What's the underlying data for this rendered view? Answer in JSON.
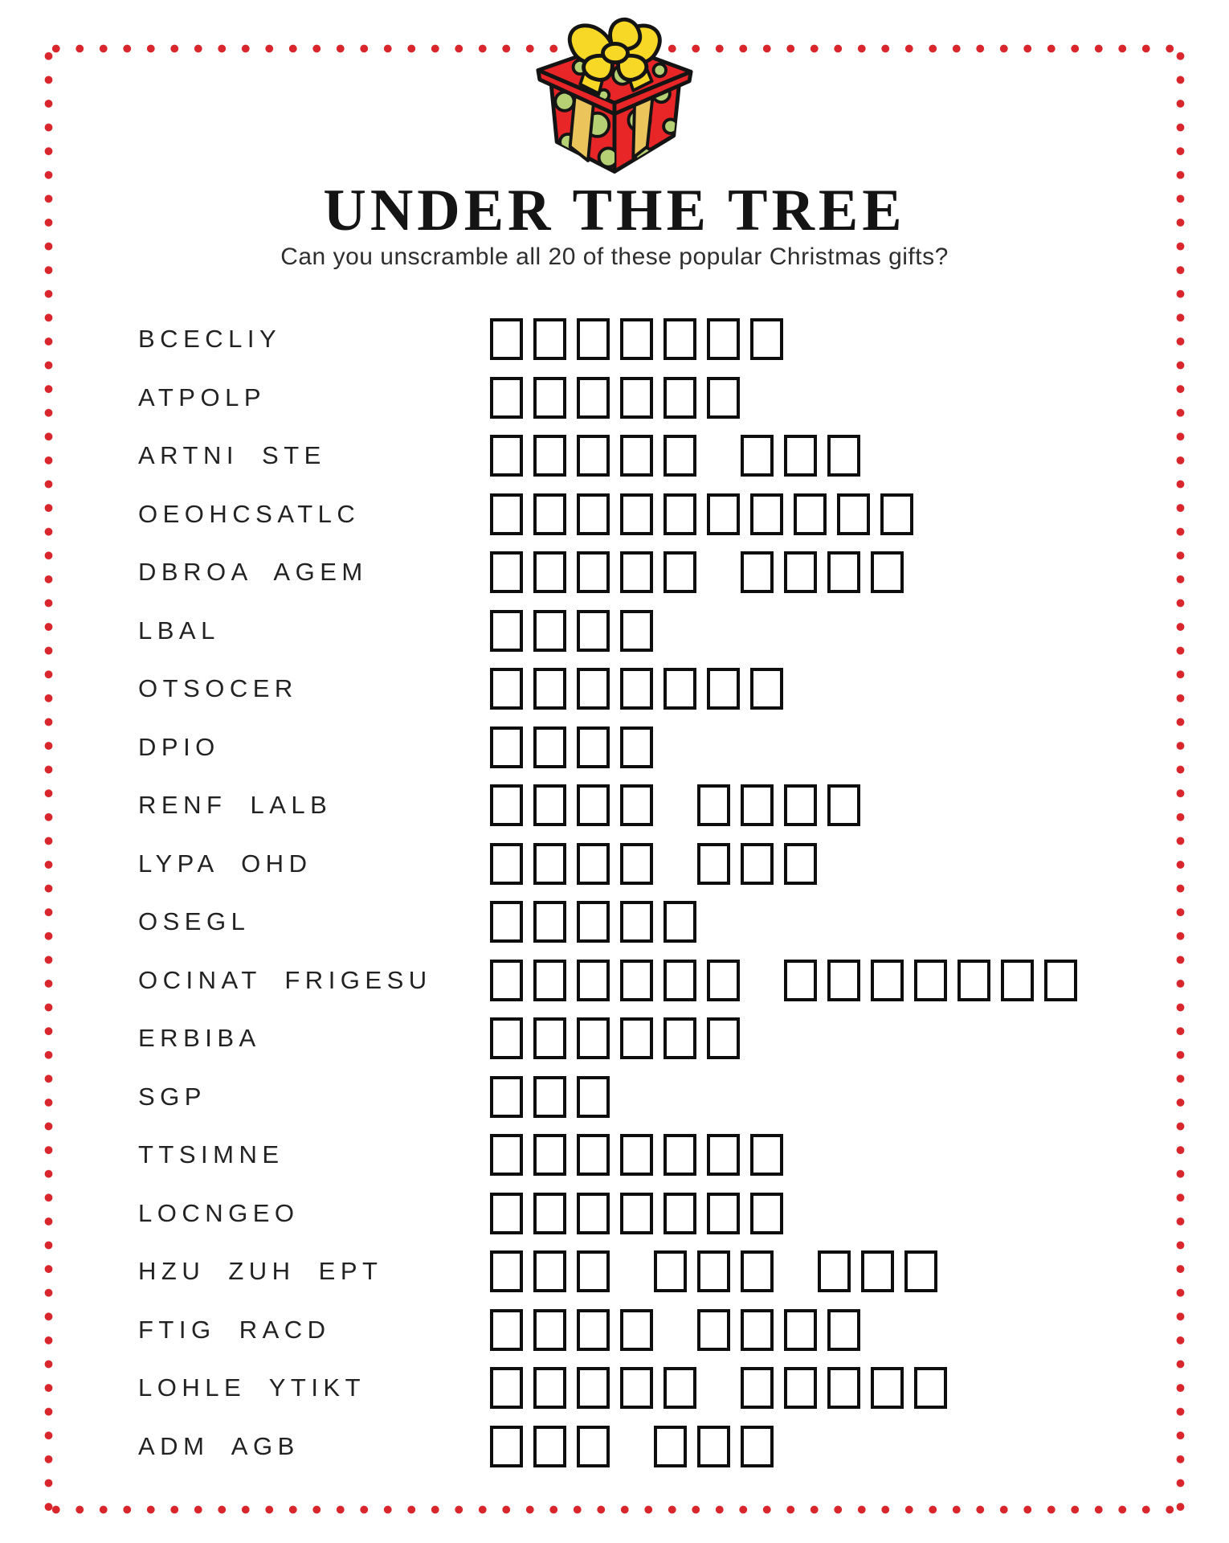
{
  "page": {
    "title": "UNDER THE TREE",
    "subtitle": "Can you unscramble all 20 of these popular Christmas gifts?"
  },
  "decorations": {
    "border": "red-dotted-frame",
    "border_color": "#d8262c",
    "gift_icon": "christmas-gift-icon",
    "gift_colors": {
      "box_red": "#e82527",
      "polka_dot_green": "#b5d173",
      "bow_yellow": "#f8d826",
      "ribbon_gold": "#ecc45c",
      "outline": "#141414"
    }
  },
  "puzzles": [
    {
      "scramble": "BCECLIY",
      "boxes": [
        7
      ]
    },
    {
      "scramble": "ATPOLP",
      "boxes": [
        6
      ]
    },
    {
      "scramble": "ARTNI STE",
      "boxes": [
        5,
        3
      ]
    },
    {
      "scramble": "OEOHCSATLC",
      "boxes": [
        10
      ]
    },
    {
      "scramble": "DBROA AGEM",
      "boxes": [
        5,
        4
      ]
    },
    {
      "scramble": "LBAL",
      "boxes": [
        4
      ]
    },
    {
      "scramble": "OTSOCER",
      "boxes": [
        7
      ]
    },
    {
      "scramble": "DPIO",
      "boxes": [
        4
      ]
    },
    {
      "scramble": "RENF LALB",
      "boxes": [
        4,
        4
      ]
    },
    {
      "scramble": "LYPA OHD",
      "boxes": [
        4,
        3
      ]
    },
    {
      "scramble": "OSEGL",
      "boxes": [
        5
      ]
    },
    {
      "scramble": "OCINAT FRIGESU",
      "boxes": [
        6,
        7
      ]
    },
    {
      "scramble": "ERBIBA",
      "boxes": [
        6
      ]
    },
    {
      "scramble": "SGP",
      "boxes": [
        3
      ]
    },
    {
      "scramble": "TTSIMNE",
      "boxes": [
        7
      ]
    },
    {
      "scramble": "LOCNGEO",
      "boxes": [
        7
      ]
    },
    {
      "scramble": "HZU ZUH EPT",
      "boxes": [
        3,
        3,
        3
      ]
    },
    {
      "scramble": "FTIG RACD",
      "boxes": [
        4,
        4
      ]
    },
    {
      "scramble": "LOHLE YTIKT",
      "boxes": [
        5,
        5
      ]
    },
    {
      "scramble": "ADM AGB",
      "boxes": [
        3,
        3
      ]
    }
  ]
}
